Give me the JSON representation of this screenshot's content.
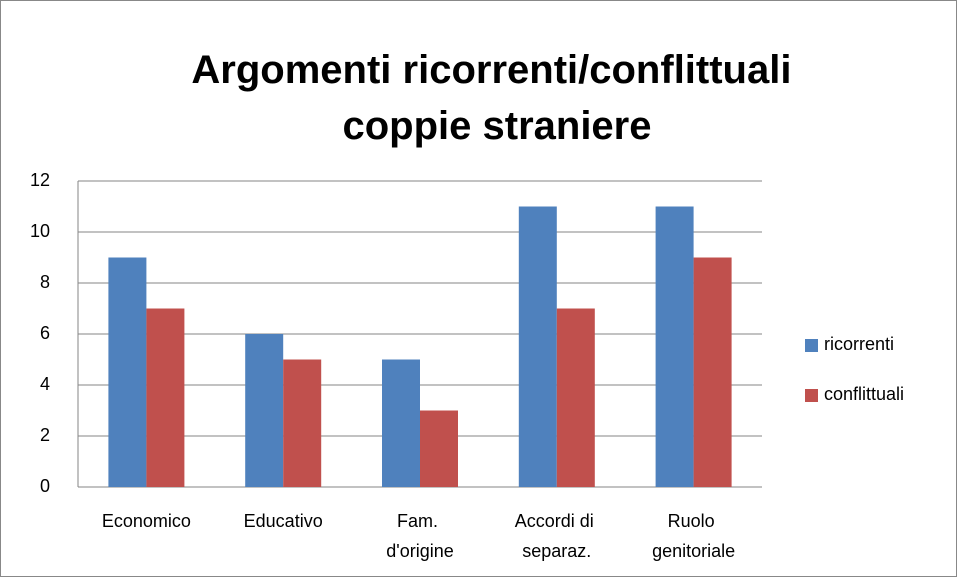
{
  "chart_data": {
    "type": "bar",
    "title": "Argomenti ricorrenti/conflittuali coppie straniere",
    "categories": [
      "Economico",
      "Educativo",
      "Fam. d'origine",
      "Accordi di separaz.",
      "Ruolo genitoriale"
    ],
    "series": [
      {
        "name": "ricorrenti",
        "color": "#4f81bd",
        "values": [
          9,
          6,
          5,
          11,
          11
        ]
      },
      {
        "name": "conflittuali",
        "color": "#c0504d",
        "values": [
          7,
          5,
          3,
          7,
          9
        ]
      }
    ],
    "ylim": [
      0,
      12
    ],
    "yticks": [
      0,
      2,
      4,
      6,
      8,
      10,
      12
    ],
    "grid": true,
    "legend": "right"
  }
}
